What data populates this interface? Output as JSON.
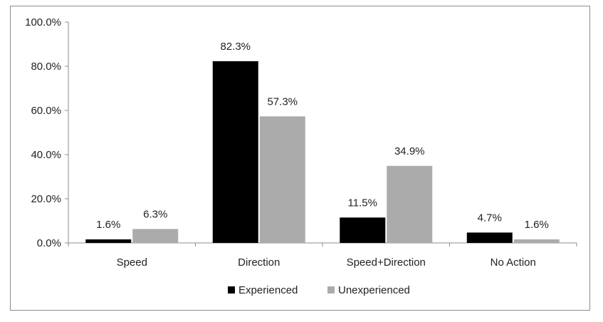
{
  "chart_data": {
    "type": "bar",
    "categories": [
      "Speed",
      "Direction",
      "Speed+Direction",
      "No Action"
    ],
    "series": [
      {
        "name": "Experienced",
        "values": [
          1.6,
          82.3,
          11.5,
          4.7
        ],
        "labels": [
          "1.6%",
          "82.3%",
          "11.5%",
          "4.7%"
        ],
        "color": "#000000"
      },
      {
        "name": "Unexperienced",
        "values": [
          6.3,
          57.3,
          34.9,
          1.6
        ],
        "labels": [
          "6.3%",
          "57.3%",
          "34.9%",
          "1.6%"
        ],
        "color": "#ababab"
      }
    ],
    "ylim": [
      0,
      100
    ],
    "yticks": [
      0,
      20,
      40,
      60,
      80,
      100
    ],
    "ytick_labels": [
      "0.0%",
      "20.0%",
      "40.0%",
      "60.0%",
      "80.0%",
      "100.0%"
    ],
    "legend_position": "bottom",
    "grid": false
  }
}
